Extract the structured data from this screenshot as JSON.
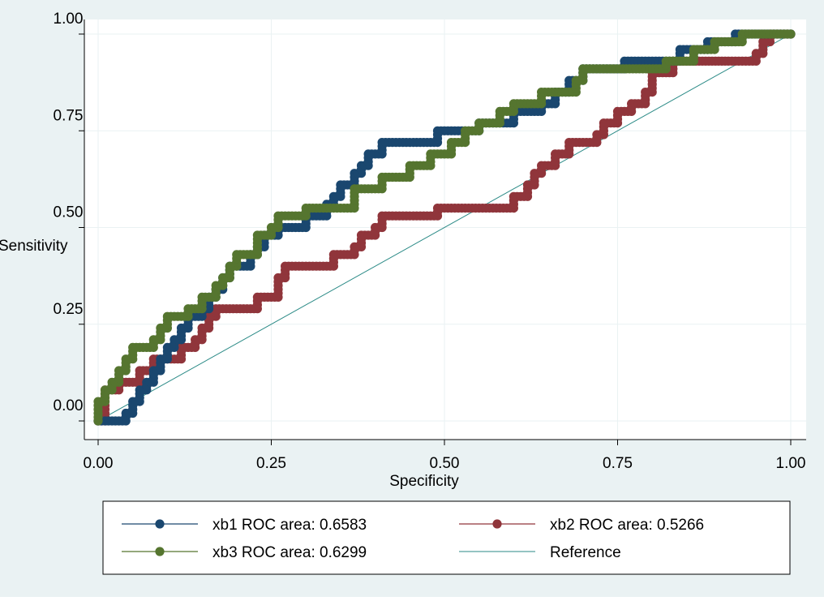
{
  "chart_data": {
    "type": "line",
    "xlabel": "Specificity",
    "ylabel": "Sensitivity",
    "xlim": [
      0,
      1
    ],
    "ylim": [
      0,
      1
    ],
    "x_ticks": [
      {
        "value": 0,
        "label": "0.00"
      },
      {
        "value": 0.25,
        "label": "0.25"
      },
      {
        "value": 0.5,
        "label": "0.50"
      },
      {
        "value": 0.75,
        "label": "0.75"
      },
      {
        "value": 1,
        "label": "1.00"
      }
    ],
    "y_ticks": [
      {
        "value": 0,
        "label": "0.00"
      },
      {
        "value": 0.25,
        "label": "0.25"
      },
      {
        "value": 0.5,
        "label": "0.50"
      },
      {
        "value": 0.75,
        "label": "0.75"
      },
      {
        "value": 1,
        "label": "1.00"
      }
    ],
    "grid": true,
    "legend_position": "bottom",
    "colors": {
      "background": "#eaf2f3",
      "plot_background": "#ffffff",
      "grid": "#eaf2f3"
    },
    "series": [
      {
        "name": "xb1 ROC area: 0.6583",
        "color": "#1a476f",
        "marker": "circle",
        "points": [
          [
            0,
            0
          ],
          [
            0.04,
            0
          ],
          [
            0.04,
            0.02
          ],
          [
            0.05,
            0.02
          ],
          [
            0.05,
            0.05
          ],
          [
            0.06,
            0.05
          ],
          [
            0.06,
            0.08
          ],
          [
            0.07,
            0.08
          ],
          [
            0.07,
            0.1
          ],
          [
            0.08,
            0.1
          ],
          [
            0.08,
            0.13
          ],
          [
            0.09,
            0.13
          ],
          [
            0.09,
            0.16
          ],
          [
            0.1,
            0.16
          ],
          [
            0.1,
            0.19
          ],
          [
            0.11,
            0.19
          ],
          [
            0.11,
            0.21
          ],
          [
            0.12,
            0.21
          ],
          [
            0.12,
            0.24
          ],
          [
            0.13,
            0.24
          ],
          [
            0.13,
            0.27
          ],
          [
            0.15,
            0.27
          ],
          [
            0.15,
            0.29
          ],
          [
            0.16,
            0.29
          ],
          [
            0.16,
            0.32
          ],
          [
            0.17,
            0.32
          ],
          [
            0.17,
            0.34
          ],
          [
            0.18,
            0.34
          ],
          [
            0.18,
            0.37
          ],
          [
            0.19,
            0.37
          ],
          [
            0.19,
            0.4
          ],
          [
            0.22,
            0.4
          ],
          [
            0.22,
            0.43
          ],
          [
            0.23,
            0.43
          ],
          [
            0.23,
            0.45
          ],
          [
            0.24,
            0.45
          ],
          [
            0.24,
            0.48
          ],
          [
            0.26,
            0.48
          ],
          [
            0.26,
            0.5
          ],
          [
            0.27,
            0.5
          ],
          [
            0.3,
            0.5
          ],
          [
            0.3,
            0.53
          ],
          [
            0.33,
            0.53
          ],
          [
            0.33,
            0.56
          ],
          [
            0.34,
            0.56
          ],
          [
            0.34,
            0.58
          ],
          [
            0.35,
            0.58
          ],
          [
            0.35,
            0.61
          ],
          [
            0.37,
            0.61
          ],
          [
            0.37,
            0.64
          ],
          [
            0.38,
            0.64
          ],
          [
            0.38,
            0.66
          ],
          [
            0.39,
            0.66
          ],
          [
            0.39,
            0.69
          ],
          [
            0.41,
            0.69
          ],
          [
            0.41,
            0.72
          ],
          [
            0.46,
            0.72
          ],
          [
            0.49,
            0.72
          ],
          [
            0.49,
            0.75
          ],
          [
            0.55,
            0.75
          ],
          [
            0.55,
            0.77
          ],
          [
            0.59,
            0.77
          ],
          [
            0.6,
            0.77
          ],
          [
            0.6,
            0.8
          ],
          [
            0.64,
            0.8
          ],
          [
            0.64,
            0.82
          ],
          [
            0.66,
            0.82
          ],
          [
            0.66,
            0.85
          ],
          [
            0.68,
            0.85
          ],
          [
            0.68,
            0.88
          ],
          [
            0.7,
            0.88
          ],
          [
            0.7,
            0.91
          ],
          [
            0.75,
            0.91
          ],
          [
            0.76,
            0.91
          ],
          [
            0.76,
            0.93
          ],
          [
            0.82,
            0.93
          ],
          [
            0.84,
            0.93
          ],
          [
            0.84,
            0.96
          ],
          [
            0.88,
            0.96
          ],
          [
            0.88,
            0.98
          ],
          [
            0.92,
            0.98
          ],
          [
            0.92,
            1
          ],
          [
            1,
            1
          ]
        ]
      },
      {
        "name": "xb2 ROC area: 0.5266",
        "color": "#90353b",
        "marker": "circle",
        "points": [
          [
            0,
            0
          ],
          [
            0.01,
            0
          ],
          [
            0.01,
            0.02
          ],
          [
            0.01,
            0.05
          ],
          [
            0.01,
            0.08
          ],
          [
            0.02,
            0.08
          ],
          [
            0.03,
            0.08
          ],
          [
            0.03,
            0.1
          ],
          [
            0.06,
            0.1
          ],
          [
            0.06,
            0.13
          ],
          [
            0.08,
            0.13
          ],
          [
            0.08,
            0.16
          ],
          [
            0.12,
            0.16
          ],
          [
            0.12,
            0.19
          ],
          [
            0.14,
            0.19
          ],
          [
            0.14,
            0.21
          ],
          [
            0.15,
            0.21
          ],
          [
            0.15,
            0.24
          ],
          [
            0.16,
            0.24
          ],
          [
            0.16,
            0.27
          ],
          [
            0.17,
            0.27
          ],
          [
            0.17,
            0.29
          ],
          [
            0.23,
            0.29
          ],
          [
            0.23,
            0.32
          ],
          [
            0.26,
            0.32
          ],
          [
            0.26,
            0.34
          ],
          [
            0.26,
            0.37
          ],
          [
            0.27,
            0.37
          ],
          [
            0.27,
            0.4
          ],
          [
            0.28,
            0.4
          ],
          [
            0.34,
            0.4
          ],
          [
            0.34,
            0.43
          ],
          [
            0.37,
            0.43
          ],
          [
            0.37,
            0.45
          ],
          [
            0.38,
            0.45
          ],
          [
            0.38,
            0.48
          ],
          [
            0.4,
            0.48
          ],
          [
            0.4,
            0.5
          ],
          [
            0.41,
            0.5
          ],
          [
            0.41,
            0.53
          ],
          [
            0.48,
            0.53
          ],
          [
            0.49,
            0.53
          ],
          [
            0.49,
            0.55
          ],
          [
            0.55,
            0.55
          ],
          [
            0.6,
            0.55
          ],
          [
            0.6,
            0.58
          ],
          [
            0.62,
            0.58
          ],
          [
            0.62,
            0.61
          ],
          [
            0.63,
            0.61
          ],
          [
            0.63,
            0.64
          ],
          [
            0.64,
            0.64
          ],
          [
            0.64,
            0.66
          ],
          [
            0.66,
            0.66
          ],
          [
            0.66,
            0.69
          ],
          [
            0.68,
            0.69
          ],
          [
            0.68,
            0.72
          ],
          [
            0.72,
            0.72
          ],
          [
            0.72,
            0.74
          ],
          [
            0.73,
            0.74
          ],
          [
            0.73,
            0.77
          ],
          [
            0.75,
            0.77
          ],
          [
            0.75,
            0.8
          ],
          [
            0.77,
            0.8
          ],
          [
            0.77,
            0.82
          ],
          [
            0.79,
            0.82
          ],
          [
            0.79,
            0.85
          ],
          [
            0.8,
            0.85
          ],
          [
            0.8,
            0.88
          ],
          [
            0.8,
            0.9
          ],
          [
            0.81,
            0.9
          ],
          [
            0.83,
            0.9
          ],
          [
            0.83,
            0.93
          ],
          [
            0.91,
            0.93
          ],
          [
            0.95,
            0.93
          ],
          [
            0.95,
            0.95
          ],
          [
            0.96,
            0.95
          ],
          [
            0.96,
            0.98
          ],
          [
            0.97,
            0.98
          ],
          [
            0.97,
            1
          ],
          [
            1,
            1
          ]
        ]
      },
      {
        "name": "xb3 ROC area: 0.6299",
        "color": "#55752f",
        "marker": "circle",
        "points": [
          [
            0,
            0
          ],
          [
            0,
            0.02
          ],
          [
            0,
            0.05
          ],
          [
            0.01,
            0.05
          ],
          [
            0.01,
            0.08
          ],
          [
            0.02,
            0.08
          ],
          [
            0.02,
            0.1
          ],
          [
            0.03,
            0.1
          ],
          [
            0.03,
            0.13
          ],
          [
            0.04,
            0.13
          ],
          [
            0.04,
            0.16
          ],
          [
            0.05,
            0.16
          ],
          [
            0.05,
            0.19
          ],
          [
            0.08,
            0.19
          ],
          [
            0.08,
            0.21
          ],
          [
            0.09,
            0.21
          ],
          [
            0.09,
            0.24
          ],
          [
            0.1,
            0.24
          ],
          [
            0.1,
            0.27
          ],
          [
            0.13,
            0.27
          ],
          [
            0.13,
            0.29
          ],
          [
            0.15,
            0.29
          ],
          [
            0.15,
            0.32
          ],
          [
            0.17,
            0.32
          ],
          [
            0.17,
            0.35
          ],
          [
            0.18,
            0.35
          ],
          [
            0.18,
            0.37
          ],
          [
            0.19,
            0.37
          ],
          [
            0.19,
            0.4
          ],
          [
            0.2,
            0.4
          ],
          [
            0.2,
            0.43
          ],
          [
            0.23,
            0.43
          ],
          [
            0.23,
            0.45
          ],
          [
            0.23,
            0.48
          ],
          [
            0.25,
            0.48
          ],
          [
            0.25,
            0.5
          ],
          [
            0.26,
            0.5
          ],
          [
            0.26,
            0.53
          ],
          [
            0.3,
            0.53
          ],
          [
            0.3,
            0.55
          ],
          [
            0.37,
            0.55
          ],
          [
            0.37,
            0.58
          ],
          [
            0.37,
            0.6
          ],
          [
            0.41,
            0.6
          ],
          [
            0.41,
            0.63
          ],
          [
            0.45,
            0.63
          ],
          [
            0.45,
            0.66
          ],
          [
            0.48,
            0.66
          ],
          [
            0.48,
            0.69
          ],
          [
            0.51,
            0.69
          ],
          [
            0.51,
            0.72
          ],
          [
            0.53,
            0.72
          ],
          [
            0.53,
            0.75
          ],
          [
            0.55,
            0.75
          ],
          [
            0.55,
            0.77
          ],
          [
            0.58,
            0.77
          ],
          [
            0.58,
            0.8
          ],
          [
            0.6,
            0.8
          ],
          [
            0.6,
            0.82
          ],
          [
            0.64,
            0.82
          ],
          [
            0.64,
            0.85
          ],
          [
            0.68,
            0.85
          ],
          [
            0.69,
            0.85
          ],
          [
            0.69,
            0.88
          ],
          [
            0.7,
            0.88
          ],
          [
            0.7,
            0.91
          ],
          [
            0.82,
            0.91
          ],
          [
            0.82,
            0.93
          ],
          [
            0.86,
            0.93
          ],
          [
            0.86,
            0.96
          ],
          [
            0.89,
            0.96
          ],
          [
            0.89,
            0.98
          ],
          [
            0.93,
            0.98
          ],
          [
            0.93,
            1
          ],
          [
            1,
            1
          ]
        ]
      },
      {
        "name": "Reference",
        "color": "#2a8a86",
        "marker": "none",
        "points": [
          [
            0,
            0
          ],
          [
            1,
            1
          ]
        ]
      }
    ]
  }
}
